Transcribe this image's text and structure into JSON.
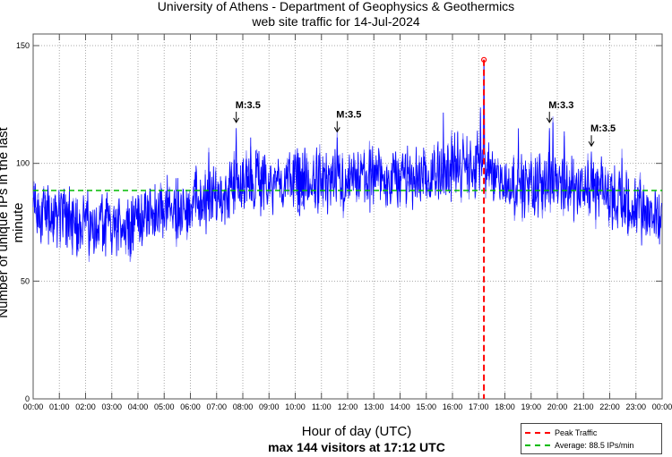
{
  "chart_data": {
    "type": "line",
    "title": "University of Athens - Department of Geophysics & Geothermics",
    "subtitle": "web site traffic for 14-Jul-2024",
    "xlabel": "Hour of day (UTC)",
    "caption": "max 144 visitors at 17:12 UTC",
    "ylabel": "Number of unique IPs in the last minute",
    "xlim": [
      0,
      24
    ],
    "ylim": [
      0,
      155
    ],
    "yticks": [
      0,
      50,
      100,
      150
    ],
    "ytick_labels": [
      "0",
      "50",
      "100",
      "150"
    ],
    "xtick_labels": [
      "00:00",
      "01:00",
      "02:00",
      "03:00",
      "04:00",
      "05:00",
      "06:00",
      "07:00",
      "08:00",
      "09:00",
      "10:00",
      "11:00",
      "12:00",
      "13:00",
      "14:00",
      "15:00",
      "16:00",
      "17:00",
      "18:00",
      "19:00",
      "20:00",
      "21:00",
      "22:00",
      "23:00",
      "00:00"
    ],
    "grid": true,
    "hourly_baseline": [
      80,
      78,
      74,
      73,
      76,
      80,
      83,
      85,
      92,
      91,
      93,
      92,
      91,
      93,
      94,
      94,
      98,
      100,
      92,
      90,
      92,
      90,
      88,
      80,
      78
    ],
    "series": [
      {
        "name": "Unique IPs per minute",
        "color": "#0000ff",
        "resolution_min": 1
      }
    ],
    "peak": {
      "time": "17:12",
      "hour": 17.2,
      "value": 144,
      "label": "Peak Traffic",
      "color": "#ff0000"
    },
    "average": {
      "value": 88.5,
      "label": "Average: 88.5 IPs/min",
      "color": "#00bb00"
    },
    "annotations": [
      {
        "text": "M:3.5",
        "hour": 7.75,
        "value": 117
      },
      {
        "text": "M:3.5",
        "hour": 11.6,
        "value": 113
      },
      {
        "text": "M:3.3",
        "hour": 19.7,
        "value": 117
      },
      {
        "text": "M:3.5",
        "hour": 21.3,
        "value": 107
      }
    ],
    "legend_position": "bottom-right"
  }
}
